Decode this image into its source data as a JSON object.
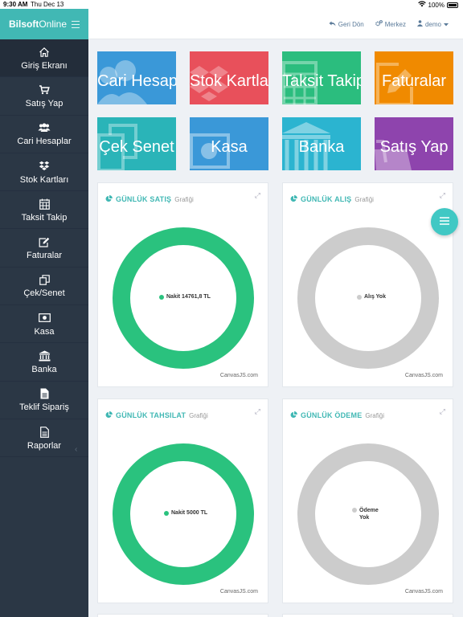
{
  "status_bar": {
    "time": "9:30 AM",
    "date": "Thu Dec 13",
    "battery": "100%"
  },
  "brand": {
    "bold": "Bilsoft",
    "light": "Online"
  },
  "sidebar": {
    "items": [
      {
        "label": "Giriş Ekranı",
        "icon": "home-icon"
      },
      {
        "label": "Satış Yap",
        "icon": "cart-icon"
      },
      {
        "label": "Cari Hesaplar",
        "icon": "users-icon"
      },
      {
        "label": "Stok Kartları",
        "icon": "dropbox-icon"
      },
      {
        "label": "Taksit Takip",
        "icon": "calendar-icon"
      },
      {
        "label": "Faturalar",
        "icon": "edit-icon"
      },
      {
        "label": "Çek/Senet",
        "icon": "copy-icon"
      },
      {
        "label": "Kasa",
        "icon": "money-icon"
      },
      {
        "label": "Banka",
        "icon": "bank-icon"
      },
      {
        "label": "Teklif Sipariş",
        "icon": "file-icon"
      },
      {
        "label": "Raporlar",
        "icon": "report-icon"
      }
    ]
  },
  "header": {
    "back": "Geri Dön",
    "branch": "Merkez",
    "user": "demo"
  },
  "tiles": [
    {
      "label": "Cari Hesaplar",
      "color": "#3a98d8"
    },
    {
      "label": "Stok Kartları",
      "color": "#e8505b"
    },
    {
      "label": "Taksit Takip",
      "color": "#2bbd7e"
    },
    {
      "label": "Faturalar",
      "color": "#f08a00"
    },
    {
      "label": "Çek Senet",
      "color": "#2ab4b8"
    },
    {
      "label": "Kasa",
      "color": "#3a98d8"
    },
    {
      "label": "Banka",
      "color": "#2bb4d0"
    },
    {
      "label": "Satış Yap",
      "color": "#8e44ad"
    }
  ],
  "panels": [
    {
      "title": "GÜNLÜK SATIŞ",
      "subtitle": "Grafiği",
      "legend": "Nakit 14761,8 TL",
      "credit": "CanvasJS.com"
    },
    {
      "title": "GÜNLÜK ALIŞ",
      "subtitle": "Grafiği",
      "legend": "Alış Yok",
      "credit": "CanvasJS.com"
    },
    {
      "title": "GÜNLÜK TAHSILAT",
      "subtitle": "Grafiği",
      "legend": "Nakit 5000 TL",
      "credit": "CanvasJS.com"
    },
    {
      "title": "GÜNLÜK ÖDEME",
      "subtitle": "Grafiği",
      "legend_line1": "Ödeme",
      "legend_line2": "Yok",
      "credit": "CanvasJS.com"
    }
  ],
  "chart_data": [
    {
      "type": "pie",
      "title": "GÜNLÜK SATIŞ",
      "categories": [
        "Nakit 14761,8 TL"
      ],
      "values": [
        14761.8
      ],
      "colors": [
        "#2ac27e"
      ]
    },
    {
      "type": "pie",
      "title": "GÜNLÜK ALIŞ",
      "categories": [
        "Alış Yok"
      ],
      "values": [
        1
      ],
      "colors": [
        "#cccccc"
      ]
    },
    {
      "type": "pie",
      "title": "GÜNLÜK TAHSILAT",
      "categories": [
        "Nakit 5000 TL"
      ],
      "values": [
        5000
      ],
      "colors": [
        "#2ac27e"
      ]
    },
    {
      "type": "pie",
      "title": "GÜNLÜK ÖDEME",
      "categories": [
        "Ödeme Yok"
      ],
      "values": [
        1
      ],
      "colors": [
        "#cccccc"
      ]
    }
  ]
}
